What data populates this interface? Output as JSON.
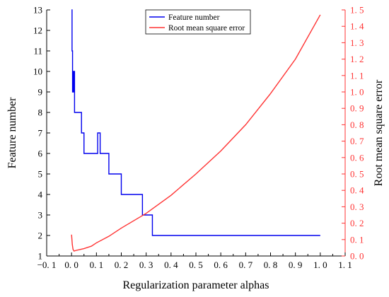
{
  "chart_data": {
    "type": "line",
    "title": "",
    "xlabel": "Regularization parameter alphas",
    "ylabel_left": "Feature number",
    "ylabel_right": "Root mean square error",
    "xlim": [
      -0.1,
      1.1
    ],
    "ylim_left": [
      1,
      13
    ],
    "ylim_right": [
      0.0,
      1.5
    ],
    "x_ticks": [
      -0.1,
      0.0,
      0.1,
      0.2,
      0.3,
      0.4,
      0.5,
      0.6,
      0.7,
      0.8,
      0.9,
      1.0,
      1.1
    ],
    "x_tick_labels": [
      "−0. 1",
      "0. 0",
      "0. 1",
      "0. 2",
      "0. 3",
      "0. 4",
      "0. 5",
      "0. 6",
      "0. 7",
      "0. 8",
      "0. 9",
      "1. 0",
      "1. 1"
    ],
    "y_left_ticks": [
      1,
      2,
      3,
      4,
      5,
      6,
      7,
      8,
      9,
      10,
      11,
      12,
      13
    ],
    "y_left_tick_labels": [
      "1",
      "2",
      "3",
      "4",
      "5",
      "6",
      "7",
      "8",
      "9",
      "10",
      "11",
      "12",
      "13"
    ],
    "y_right_ticks": [
      0.0,
      0.1,
      0.2,
      0.3,
      0.4,
      0.5,
      0.6,
      0.7,
      0.8,
      0.9,
      1.0,
      1.1,
      1.2,
      1.3,
      1.4,
      1.5
    ],
    "y_right_tick_labels": [
      "0. 0",
      "0. 1",
      "0. 2",
      "0. 3",
      "0. 4",
      "0. 5",
      "0. 6",
      "0. 7",
      "0. 8",
      "0. 9",
      "1. 0",
      "1. 1",
      "1. 2",
      "1. 3",
      "1. 4",
      "1. 5"
    ],
    "grid": false,
    "legend_position": "top-center",
    "series": [
      {
        "name": "Feature number",
        "axis": "left",
        "color": "#0000ee",
        "step": true,
        "x": [
          0.0,
          0.002,
          0.004,
          0.006,
          0.008,
          0.01,
          0.012,
          0.035,
          0.04,
          0.045,
          0.05,
          0.1,
          0.105,
          0.11,
          0.115,
          0.145,
          0.15,
          0.195,
          0.2,
          0.28,
          0.285,
          0.32,
          0.325,
          1.0
        ],
        "y": [
          13,
          11,
          9,
          10,
          9,
          10,
          8,
          8,
          7,
          7,
          6,
          6,
          7,
          7,
          6,
          6,
          5,
          5,
          4,
          4,
          3,
          3,
          2,
          2
        ]
      },
      {
        "name": "Root mean square error",
        "axis": "right",
        "color": "#ff3333",
        "step": false,
        "x": [
          0.0,
          0.003,
          0.006,
          0.01,
          0.02,
          0.03,
          0.05,
          0.08,
          0.1,
          0.15,
          0.2,
          0.3,
          0.4,
          0.5,
          0.6,
          0.7,
          0.8,
          0.9,
          1.0
        ],
        "y": [
          0.13,
          0.07,
          0.04,
          0.03,
          0.035,
          0.038,
          0.045,
          0.06,
          0.08,
          0.12,
          0.17,
          0.26,
          0.37,
          0.5,
          0.64,
          0.8,
          0.99,
          1.2,
          1.47
        ]
      }
    ]
  }
}
